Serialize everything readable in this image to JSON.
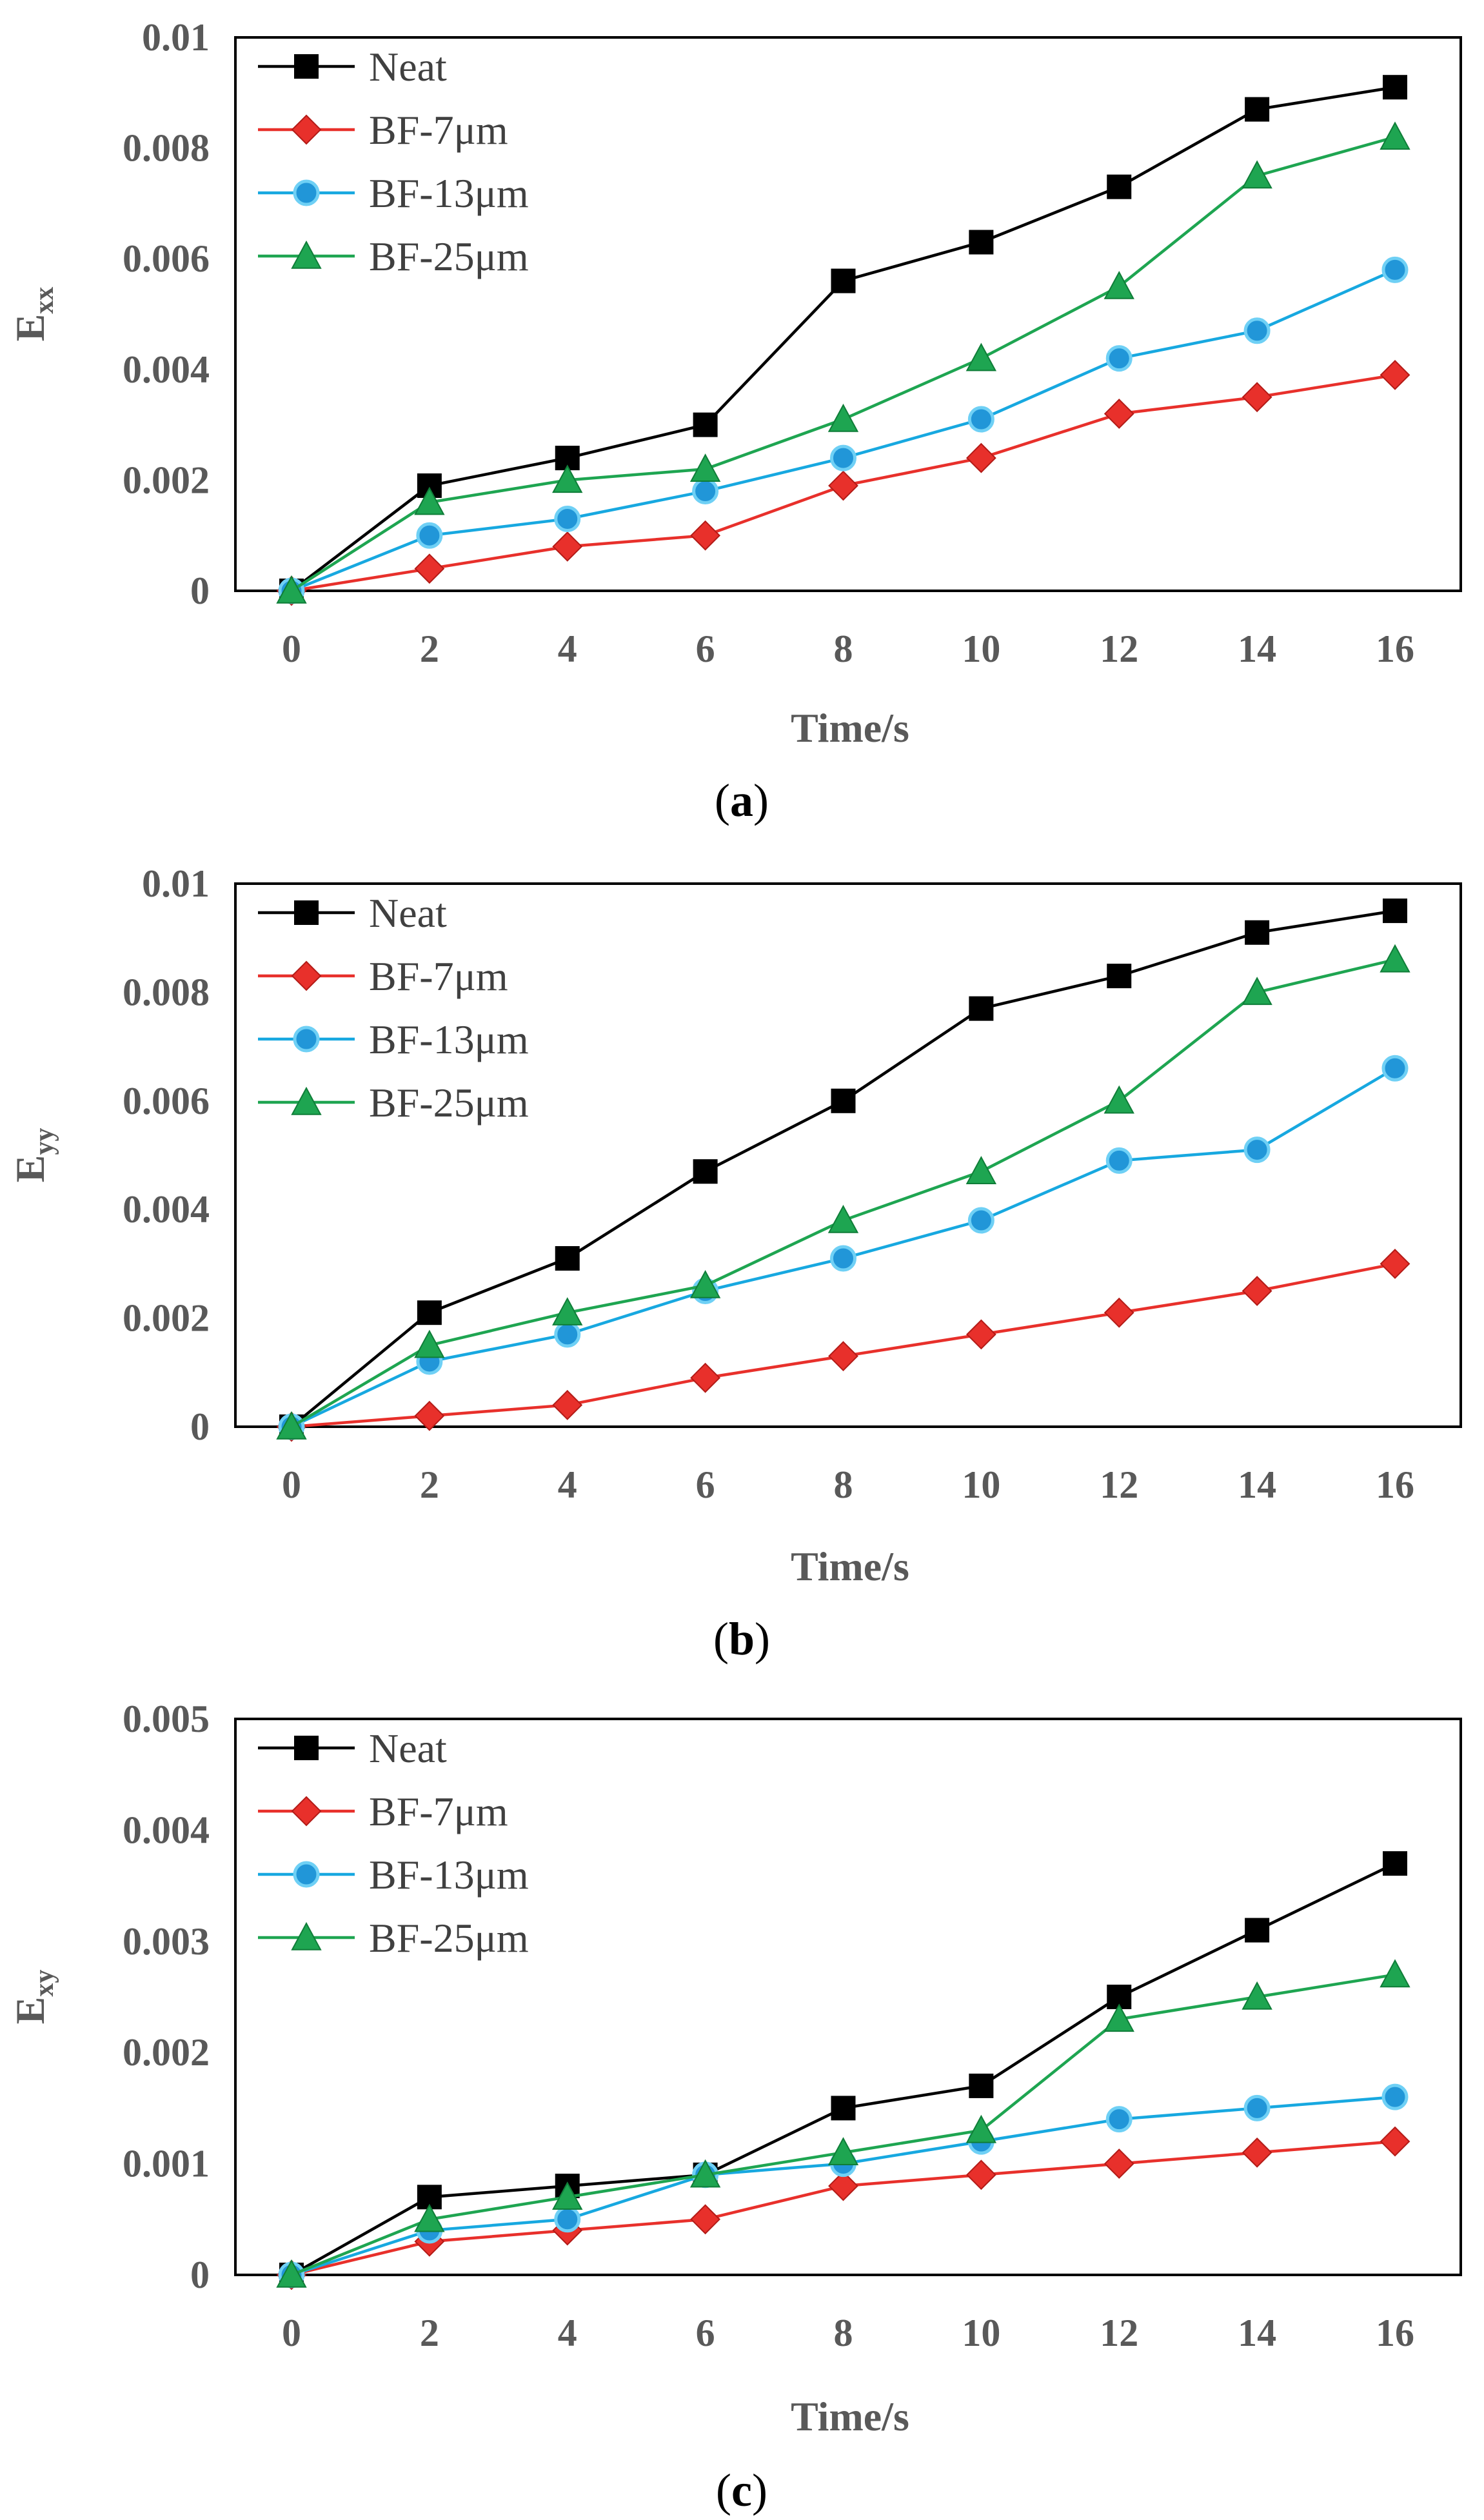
{
  "colors": {
    "Neat": "#000000",
    "BF-7μm": "#e8302b",
    "BF-13μm": "#17a8e0",
    "BF-25μm": "#1ea551",
    "axis_text": "#595959"
  },
  "chart_data": [
    {
      "type": "line",
      "panel": "a",
      "caption_open": "(",
      "caption_letter": "a",
      "caption_close": ")",
      "ylabel_main": "E",
      "ylabel_sub": "xx",
      "xlabel": "Time/s",
      "x": [
        0,
        2,
        4,
        6,
        8,
        10,
        12,
        14,
        16
      ],
      "xticks": [
        "0",
        "2",
        "4",
        "6",
        "8",
        "10",
        "12",
        "14",
        "16"
      ],
      "ylim": [
        0,
        0.01
      ],
      "yticks": [
        0,
        0.002,
        0.004,
        0.006,
        0.008,
        0.01
      ],
      "ytick_labels": [
        "0",
        "0.002",
        "0.004",
        "0.006",
        "0.008",
        "0.01"
      ],
      "legend_loc": "top-left",
      "series": [
        {
          "name": "Neat",
          "marker": "square",
          "values": [
            0,
            0.0019,
            0.0024,
            0.003,
            0.0056,
            0.0063,
            0.0073,
            0.0087,
            0.0091
          ]
        },
        {
          "name": "BF-7μm",
          "marker": "diamond",
          "values": [
            0,
            0.0004,
            0.0008,
            0.001,
            0.0019,
            0.0024,
            0.0032,
            0.0035,
            0.0039
          ]
        },
        {
          "name": "BF-13μm",
          "marker": "circle",
          "values": [
            0,
            0.001,
            0.0013,
            0.0018,
            0.0024,
            0.0031,
            0.0042,
            0.0047,
            0.0058
          ]
        },
        {
          "name": "BF-25μm",
          "marker": "triangle",
          "values": [
            0,
            0.0016,
            0.002,
            0.0022,
            0.0031,
            0.0042,
            0.0055,
            0.0075,
            0.0082
          ]
        }
      ]
    },
    {
      "type": "line",
      "panel": "b",
      "caption_open": "(",
      "caption_letter": "b",
      "caption_close": ")",
      "ylabel_main": "E",
      "ylabel_sub": "yy",
      "xlabel": "Time/s",
      "x": [
        0,
        2,
        4,
        6,
        8,
        10,
        12,
        14,
        16
      ],
      "xticks": [
        "0",
        "2",
        "4",
        "6",
        "8",
        "10",
        "12",
        "14",
        "16"
      ],
      "ylim": [
        0,
        0.01
      ],
      "yticks": [
        0,
        0.002,
        0.004,
        0.006,
        0.008,
        0.01
      ],
      "ytick_labels": [
        "0",
        "0.002",
        "0.004",
        "0.006",
        "0.008",
        "0.01"
      ],
      "legend_loc": "top-left",
      "series": [
        {
          "name": "Neat",
          "marker": "square",
          "values": [
            0,
            0.0021,
            0.0031,
            0.0047,
            0.006,
            0.0077,
            0.0083,
            0.0091,
            0.0095
          ]
        },
        {
          "name": "BF-7μm",
          "marker": "diamond",
          "values": [
            0,
            0.0002,
            0.0004,
            0.0009,
            0.0013,
            0.0017,
            0.0021,
            0.0025,
            0.003
          ]
        },
        {
          "name": "BF-13μm",
          "marker": "circle",
          "values": [
            0,
            0.0012,
            0.0017,
            0.0025,
            0.0031,
            0.0038,
            0.0049,
            0.0051,
            0.0066
          ]
        },
        {
          "name": "BF-25μm",
          "marker": "triangle",
          "values": [
            0,
            0.0015,
            0.0021,
            0.0026,
            0.0038,
            0.0047,
            0.006,
            0.008,
            0.0086
          ]
        }
      ]
    },
    {
      "type": "line",
      "panel": "c",
      "caption_open": "(",
      "caption_letter": "c",
      "caption_close": ")",
      "ylabel_main": "E",
      "ylabel_sub": "xy",
      "xlabel": "Time/s",
      "x": [
        0,
        2,
        4,
        6,
        8,
        10,
        12,
        14,
        16
      ],
      "xticks": [
        "0",
        "2",
        "4",
        "6",
        "8",
        "10",
        "12",
        "14",
        "16"
      ],
      "ylim": [
        0,
        0.005
      ],
      "yticks": [
        0,
        0.001,
        0.002,
        0.003,
        0.004,
        0.005
      ],
      "ytick_labels": [
        "0",
        "0.001",
        "0.002",
        "0.003",
        "0.004",
        "0.005"
      ],
      "legend_loc": "top-left",
      "series": [
        {
          "name": "Neat",
          "marker": "square",
          "values": [
            0,
            0.0007,
            0.0008,
            0.0009,
            0.0015,
            0.0017,
            0.0025,
            0.0031,
            0.0037
          ]
        },
        {
          "name": "BF-7μm",
          "marker": "diamond",
          "values": [
            0,
            0.0003,
            0.0004,
            0.0005,
            0.0008,
            0.0009,
            0.001,
            0.0011,
            0.0012
          ]
        },
        {
          "name": "BF-13μm",
          "marker": "circle",
          "values": [
            0,
            0.0004,
            0.0005,
            0.0009,
            0.001,
            0.0012,
            0.0014,
            0.0015,
            0.0016
          ]
        },
        {
          "name": "BF-25μm",
          "marker": "triangle",
          "values": [
            0,
            0.0005,
            0.0007,
            0.0009,
            0.0011,
            0.0013,
            0.0023,
            0.0025,
            0.0027
          ]
        }
      ]
    }
  ]
}
